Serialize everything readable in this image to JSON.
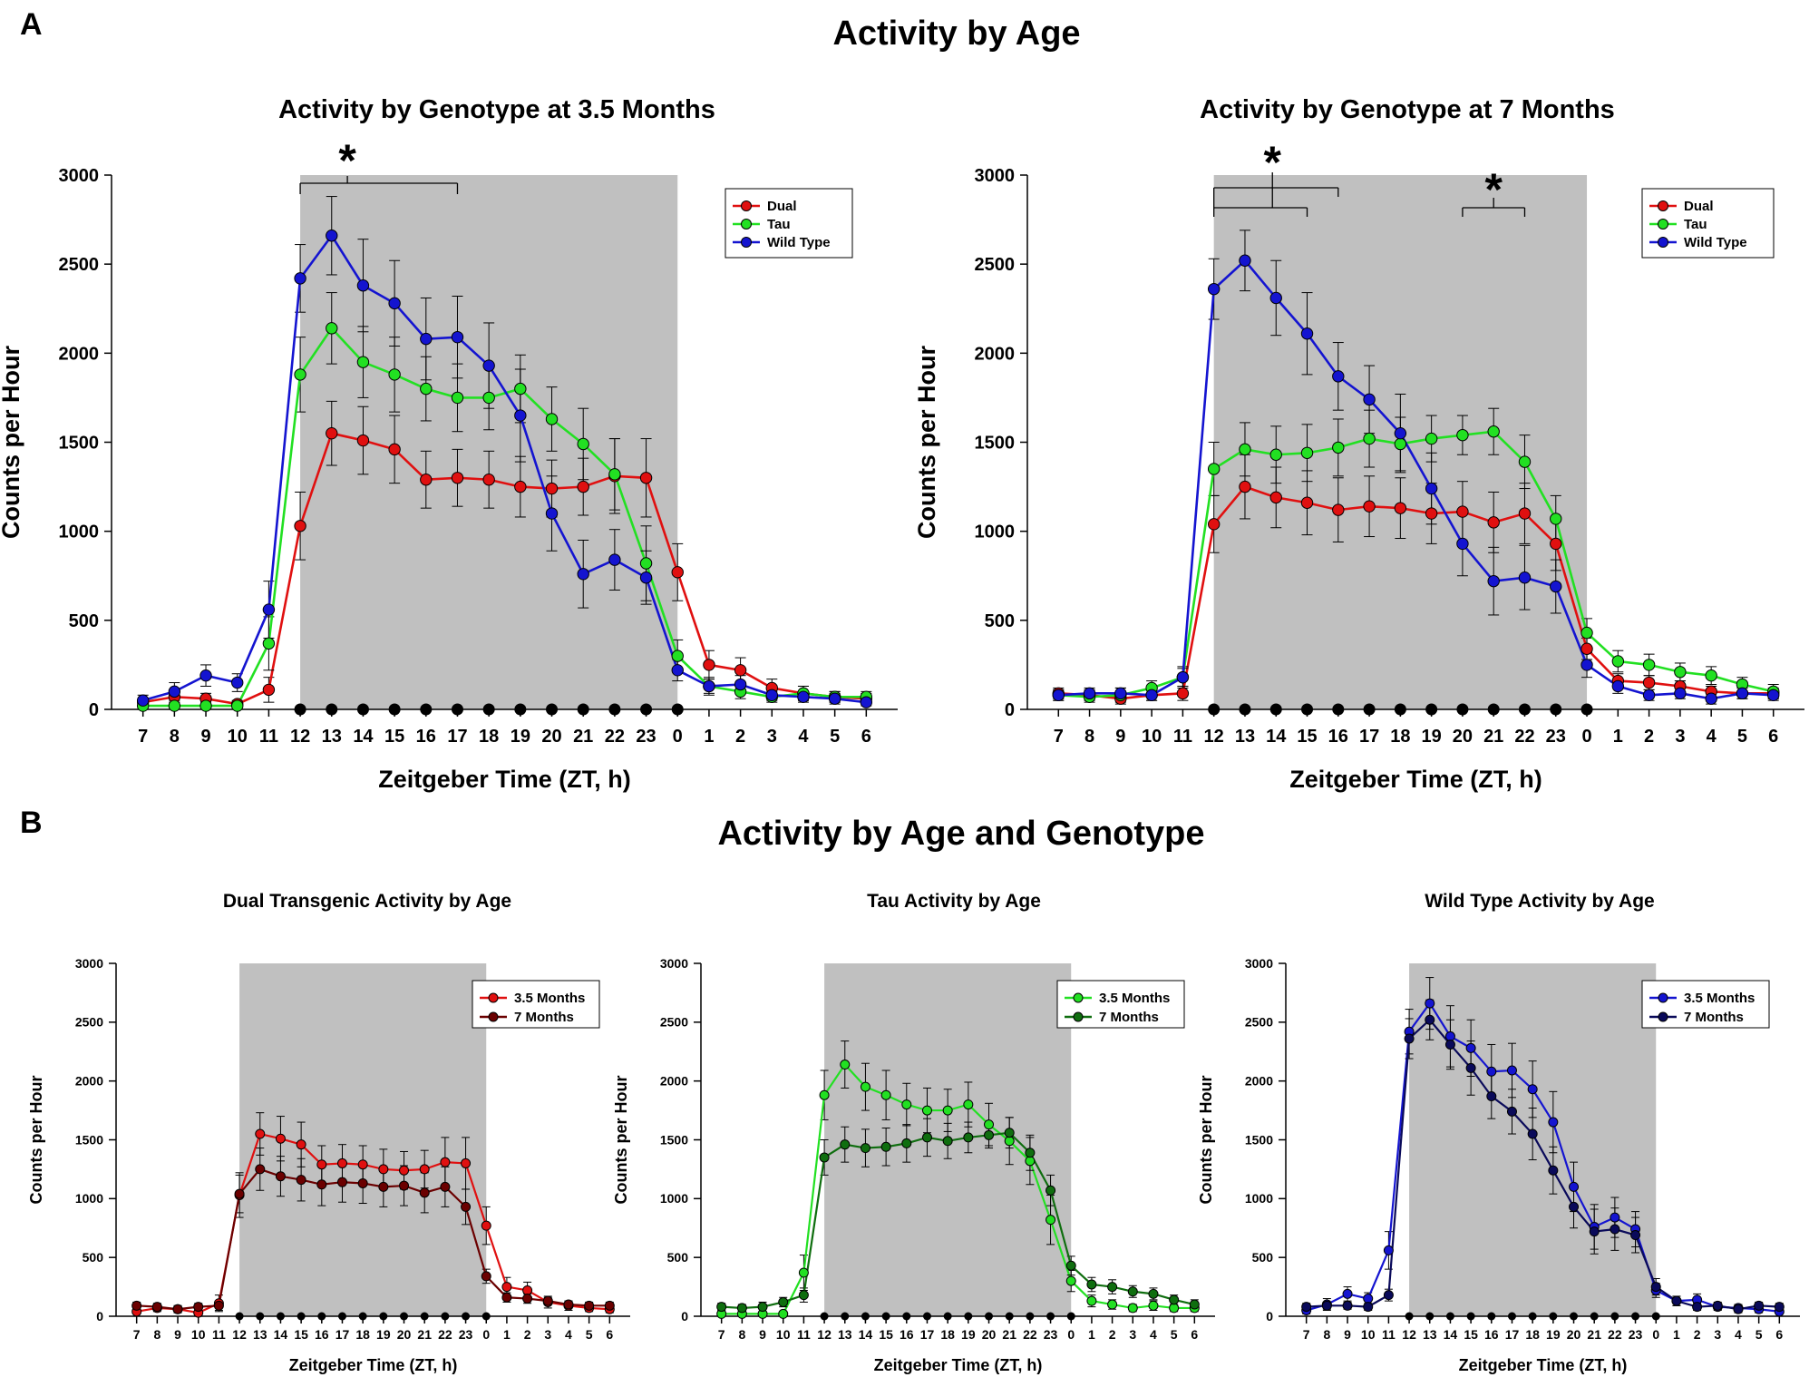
{
  "figure": {
    "panel_a_label": "A",
    "panel_b_label": "B",
    "section_a_title": "Activity by Age",
    "section_b_title": "Activity by Age and Genotype"
  },
  "colors": {
    "dual": "#e01010",
    "tau": "#22e022",
    "wt": "#1414d0",
    "dual_7": "#6b0000",
    "tau_7": "#0f6e0f",
    "wt_7": "#0a0a5a",
    "shade": "#c0c0c0"
  },
  "chart_data": [
    {
      "id": "a1",
      "type": "line",
      "title": "Activity by Genotype at 3.5 Months",
      "xlabel": "Zeitgeber Time (ZT, h)",
      "ylabel": "Counts per Hour",
      "categories": [
        "7",
        "8",
        "9",
        "10",
        "11",
        "12",
        "13",
        "14",
        "15",
        "16",
        "17",
        "18",
        "19",
        "20",
        "21",
        "22",
        "23",
        "0",
        "1",
        "2",
        "3",
        "4",
        "5",
        "6"
      ],
      "ylim": [
        0,
        3000
      ],
      "yticks": [
        0,
        500,
        1000,
        1500,
        2000,
        2500,
        3000
      ],
      "dark_phase": [
        "12",
        "0"
      ],
      "legend": {
        "position": "top-right",
        "entries": [
          "Dual",
          "Tau",
          "Wild Type"
        ]
      },
      "series": [
        {
          "name": "Dual",
          "color": "dual",
          "values": [
            40,
            70,
            60,
            30,
            110,
            1030,
            1550,
            1510,
            1460,
            1290,
            1300,
            1290,
            1250,
            1240,
            1250,
            1310,
            1300,
            770,
            250,
            220,
            120,
            90,
            70,
            60
          ],
          "errors": [
            20,
            30,
            30,
            20,
            70,
            190,
            180,
            190,
            190,
            160,
            160,
            160,
            170,
            160,
            160,
            210,
            220,
            160,
            80,
            70,
            50,
            40,
            30,
            30
          ]
        },
        {
          "name": "Tau",
          "color": "tau",
          "values": [
            20,
            20,
            20,
            20,
            370,
            1880,
            2140,
            1950,
            1880,
            1800,
            1750,
            1750,
            1800,
            1630,
            1490,
            1320,
            820,
            300,
            130,
            100,
            70,
            90,
            70,
            70
          ],
          "errors": [
            20,
            20,
            20,
            20,
            150,
            210,
            200,
            200,
            210,
            180,
            190,
            180,
            190,
            180,
            200,
            200,
            210,
            90,
            50,
            40,
            30,
            40,
            30,
            30
          ]
        },
        {
          "name": "Wild Type",
          "color": "wt",
          "values": [
            50,
            100,
            190,
            150,
            560,
            2420,
            2660,
            2380,
            2280,
            2080,
            2090,
            1930,
            1650,
            1100,
            760,
            840,
            740,
            220,
            130,
            140,
            80,
            70,
            60,
            40
          ],
          "errors": [
            30,
            50,
            60,
            50,
            160,
            190,
            220,
            260,
            240,
            230,
            230,
            240,
            260,
            210,
            190,
            170,
            150,
            60,
            40,
            50,
            30,
            30,
            30,
            20
          ]
        }
      ],
      "annotations": [
        {
          "text": "*",
          "bracket_from": "12",
          "bracket_to": "17"
        }
      ]
    },
    {
      "id": "a2",
      "type": "line",
      "title": "Activity by Genotype at 7 Months",
      "xlabel": "Zeitgeber Time (ZT, h)",
      "ylabel": "Counts per Hour",
      "categories": [
        "7",
        "8",
        "9",
        "10",
        "11",
        "12",
        "13",
        "14",
        "15",
        "16",
        "17",
        "18",
        "19",
        "20",
        "21",
        "22",
        "23",
        "0",
        "1",
        "2",
        "3",
        "4",
        "5",
        "6"
      ],
      "ylim": [
        0,
        3000
      ],
      "yticks": [
        0,
        500,
        1000,
        1500,
        2000,
        2500,
        3000
      ],
      "dark_phase": [
        "12",
        "0"
      ],
      "legend": {
        "position": "top-right",
        "entries": [
          "Dual",
          "Tau",
          "Wild Type"
        ]
      },
      "series": [
        {
          "name": "Dual",
          "color": "dual",
          "values": [
            90,
            80,
            60,
            80,
            90,
            1040,
            1250,
            1190,
            1160,
            1120,
            1140,
            1130,
            1100,
            1110,
            1050,
            1100,
            930,
            340,
            160,
            150,
            130,
            100,
            90,
            90
          ],
          "errors": [
            30,
            30,
            30,
            30,
            40,
            160,
            180,
            170,
            180,
            180,
            170,
            170,
            170,
            170,
            170,
            170,
            150,
            60,
            40,
            40,
            30,
            30,
            30,
            30
          ]
        },
        {
          "name": "Tau",
          "color": "tau",
          "values": [
            80,
            70,
            80,
            120,
            180,
            1350,
            1460,
            1430,
            1440,
            1470,
            1520,
            1490,
            1520,
            1540,
            1560,
            1390,
            1070,
            430,
            270,
            250,
            210,
            190,
            140,
            100
          ],
          "errors": [
            30,
            30,
            40,
            40,
            60,
            150,
            150,
            160,
            160,
            160,
            160,
            150,
            130,
            110,
            130,
            150,
            130,
            80,
            60,
            60,
            50,
            50,
            40,
            40
          ]
        },
        {
          "name": "Wild Type",
          "color": "wt",
          "values": [
            80,
            90,
            90,
            80,
            180,
            2360,
            2520,
            2310,
            2110,
            1870,
            1740,
            1550,
            1240,
            930,
            720,
            740,
            690,
            250,
            130,
            80,
            90,
            60,
            90,
            80
          ],
          "errors": [
            30,
            30,
            30,
            30,
            50,
            170,
            170,
            210,
            230,
            190,
            190,
            220,
            200,
            180,
            190,
            180,
            150,
            70,
            40,
            30,
            30,
            30,
            30,
            30
          ]
        }
      ],
      "annotations": [
        {
          "text": "*",
          "bracket_from": "12",
          "bracket_to": "16"
        },
        {
          "text": "*",
          "bracket_from": "20",
          "bracket_to": "22"
        }
      ]
    },
    {
      "id": "b1",
      "type": "line",
      "title": "Dual Transgenic Activity by Age",
      "xlabel": "Zeitgeber Time (ZT, h)",
      "ylabel": "Counts per Hour",
      "categories": [
        "7",
        "8",
        "9",
        "10",
        "11",
        "12",
        "13",
        "14",
        "15",
        "16",
        "17",
        "18",
        "19",
        "20",
        "21",
        "22",
        "23",
        "0",
        "1",
        "2",
        "3",
        "4",
        "5",
        "6"
      ],
      "ylim": [
        0,
        3000
      ],
      "yticks": [
        0,
        500,
        1000,
        1500,
        2000,
        2500,
        3000
      ],
      "dark_phase": [
        "12",
        "0"
      ],
      "legend": {
        "position": "top-right",
        "entries": [
          "3.5 Months",
          "7 Months"
        ]
      },
      "series": [
        {
          "name": "3.5 Months",
          "color": "dual",
          "values": [
            40,
            70,
            60,
            30,
            110,
            1030,
            1550,
            1510,
            1460,
            1290,
            1300,
            1290,
            1250,
            1240,
            1250,
            1310,
            1300,
            770,
            250,
            220,
            120,
            90,
            70,
            60
          ],
          "errors": [
            20,
            30,
            30,
            20,
            70,
            190,
            180,
            190,
            190,
            160,
            160,
            160,
            170,
            160,
            160,
            210,
            220,
            160,
            80,
            70,
            50,
            40,
            30,
            30
          ]
        },
        {
          "name": "7 Months",
          "color": "dual_7",
          "values": [
            90,
            80,
            60,
            80,
            90,
            1040,
            1250,
            1190,
            1160,
            1120,
            1140,
            1130,
            1100,
            1110,
            1050,
            1100,
            930,
            340,
            160,
            150,
            130,
            100,
            90,
            90
          ],
          "errors": [
            30,
            30,
            30,
            30,
            40,
            160,
            180,
            170,
            180,
            180,
            170,
            170,
            170,
            170,
            170,
            170,
            150,
            60,
            40,
            40,
            30,
            30,
            30,
            30
          ]
        }
      ]
    },
    {
      "id": "b2",
      "type": "line",
      "title": "Tau Activity by Age",
      "xlabel": "Zeitgeber Time (ZT, h)",
      "ylabel": "Counts per Hour",
      "categories": [
        "7",
        "8",
        "9",
        "10",
        "11",
        "12",
        "13",
        "14",
        "15",
        "16",
        "17",
        "18",
        "19",
        "20",
        "21",
        "22",
        "23",
        "0",
        "1",
        "2",
        "3",
        "4",
        "5",
        "6"
      ],
      "ylim": [
        0,
        3000
      ],
      "yticks": [
        0,
        500,
        1000,
        1500,
        2000,
        2500,
        3000
      ],
      "dark_phase": [
        "12",
        "0"
      ],
      "legend": {
        "position": "top-right",
        "entries": [
          "3.5 Months",
          "7 Months"
        ]
      },
      "series": [
        {
          "name": "3.5 Months",
          "color": "tau",
          "values": [
            20,
            20,
            20,
            20,
            370,
            1880,
            2140,
            1950,
            1880,
            1800,
            1750,
            1750,
            1800,
            1630,
            1490,
            1320,
            820,
            300,
            130,
            100,
            70,
            90,
            70,
            70
          ],
          "errors": [
            20,
            20,
            20,
            20,
            150,
            210,
            200,
            200,
            210,
            180,
            190,
            180,
            190,
            180,
            200,
            200,
            210,
            90,
            50,
            40,
            30,
            40,
            30,
            30
          ]
        },
        {
          "name": "7 Months",
          "color": "tau_7",
          "values": [
            80,
            70,
            80,
            120,
            180,
            1350,
            1460,
            1430,
            1440,
            1470,
            1520,
            1490,
            1520,
            1540,
            1560,
            1390,
            1070,
            430,
            270,
            250,
            210,
            190,
            140,
            100
          ],
          "errors": [
            30,
            30,
            40,
            40,
            60,
            150,
            150,
            160,
            160,
            160,
            160,
            150,
            130,
            110,
            130,
            150,
            130,
            80,
            60,
            60,
            50,
            50,
            40,
            40
          ]
        }
      ]
    },
    {
      "id": "b3",
      "type": "line",
      "title": "Wild Type Activity by Age",
      "xlabel": "Zeitgeber Time (ZT, h)",
      "ylabel": "Counts per Hour",
      "categories": [
        "7",
        "8",
        "9",
        "10",
        "11",
        "12",
        "13",
        "14",
        "15",
        "16",
        "17",
        "18",
        "19",
        "20",
        "21",
        "22",
        "23",
        "0",
        "1",
        "2",
        "3",
        "4",
        "5",
        "6"
      ],
      "ylim": [
        0,
        3000
      ],
      "yticks": [
        0,
        500,
        1000,
        1500,
        2000,
        2500,
        3000
      ],
      "dark_phase": [
        "12",
        "0"
      ],
      "legend": {
        "position": "top-right",
        "entries": [
          "3.5 Months",
          "7 Months"
        ]
      },
      "series": [
        {
          "name": "3.5 Months",
          "color": "wt",
          "values": [
            50,
            100,
            190,
            150,
            560,
            2420,
            2660,
            2380,
            2280,
            2080,
            2090,
            1930,
            1650,
            1100,
            760,
            840,
            740,
            220,
            130,
            140,
            80,
            70,
            60,
            40
          ],
          "errors": [
            30,
            50,
            60,
            50,
            160,
            190,
            220,
            260,
            240,
            230,
            230,
            240,
            260,
            210,
            190,
            170,
            150,
            60,
            40,
            50,
            30,
            30,
            30,
            20
          ]
        },
        {
          "name": "7 Months",
          "color": "wt_7",
          "values": [
            80,
            90,
            90,
            80,
            180,
            2360,
            2520,
            2310,
            2110,
            1870,
            1740,
            1550,
            1240,
            930,
            720,
            740,
            690,
            250,
            130,
            80,
            90,
            60,
            90,
            80
          ],
          "errors": [
            30,
            30,
            30,
            30,
            50,
            170,
            170,
            210,
            230,
            190,
            190,
            220,
            200,
            180,
            190,
            180,
            150,
            70,
            40,
            30,
            30,
            30,
            30,
            30
          ]
        }
      ]
    }
  ]
}
